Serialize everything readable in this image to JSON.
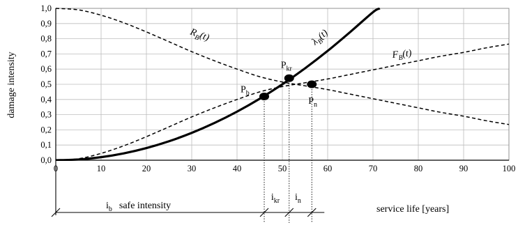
{
  "chart_data": {
    "type": "line",
    "xlabel": "service life [years]",
    "ylabel": "damage intensity",
    "xlim": [
      0,
      100
    ],
    "ylim": [
      0,
      1.0
    ],
    "xticks": [
      "0",
      "10",
      "20",
      "30",
      "40",
      "50",
      "60",
      "70",
      "80",
      "90",
      "100"
    ],
    "yticks": [
      "0,0",
      "0,1",
      "0,2",
      "0,3",
      "0,4",
      "0,5",
      "0,6",
      "0,7",
      "0,8",
      "0,9",
      "1,0"
    ],
    "grid": true,
    "series": [
      {
        "name": "RB(t)",
        "label_main": "R",
        "label_sub": "B",
        "label_tail": "(t)",
        "style": "dashed",
        "x": [
          0,
          5,
          10,
          15,
          20,
          25,
          30,
          35,
          40,
          45,
          50,
          55,
          60,
          65,
          70,
          75,
          80,
          85,
          90,
          95,
          100
        ],
        "y": [
          1.0,
          0.99,
          0.955,
          0.905,
          0.845,
          0.78,
          0.715,
          0.655,
          0.6,
          0.55,
          0.515,
          0.49,
          0.465,
          0.435,
          0.405,
          0.375,
          0.345,
          0.315,
          0.29,
          0.26,
          0.235
        ]
      },
      {
        "name": "FB(t)",
        "label_main": "F",
        "label_sub": "B",
        "label_tail": "(t)",
        "style": "dashed",
        "x": [
          0,
          5,
          10,
          15,
          20,
          25,
          30,
          35,
          40,
          45,
          50,
          55,
          60,
          65,
          70,
          75,
          80,
          85,
          90,
          95,
          100
        ],
        "y": [
          0.0,
          0.01,
          0.045,
          0.095,
          0.155,
          0.22,
          0.285,
          0.345,
          0.4,
          0.45,
          0.485,
          0.51,
          0.535,
          0.565,
          0.595,
          0.625,
          0.655,
          0.685,
          0.71,
          0.74,
          0.765
        ]
      },
      {
        "name": "λB(t)",
        "label_main": "λ",
        "label_sub": "B",
        "label_tail": "(t)",
        "style": "solid-bold",
        "x": [
          0,
          5,
          10,
          15,
          20,
          25,
          30,
          35,
          40,
          45,
          50,
          55,
          60,
          65,
          70,
          71.5
        ],
        "y": [
          0.0,
          0.005,
          0.02,
          0.045,
          0.08,
          0.125,
          0.18,
          0.245,
          0.32,
          0.405,
          0.5,
          0.605,
          0.72,
          0.845,
          0.975,
          1.0
        ]
      }
    ],
    "points": [
      {
        "label_main": "P",
        "label_sub": "b",
        "x": 46,
        "y": 0.42
      },
      {
        "label_main": "P",
        "label_sub": "kr",
        "x": 51.5,
        "y": 0.54
      },
      {
        "label_main": "P",
        "label_sub": "n",
        "x": 56.5,
        "y": 0.5
      }
    ],
    "intervals": [
      {
        "label_main": "i",
        "label_sub": "b",
        "label_tail": "safe intensity",
        "from": 0,
        "to": 46
      },
      {
        "label_main": "i",
        "label_sub": "kr",
        "label_tail": "",
        "from": 46,
        "to": 51.5
      },
      {
        "label_main": "i",
        "label_sub": "n",
        "label_tail": "",
        "from": 51.5,
        "to": 56.5
      }
    ]
  }
}
